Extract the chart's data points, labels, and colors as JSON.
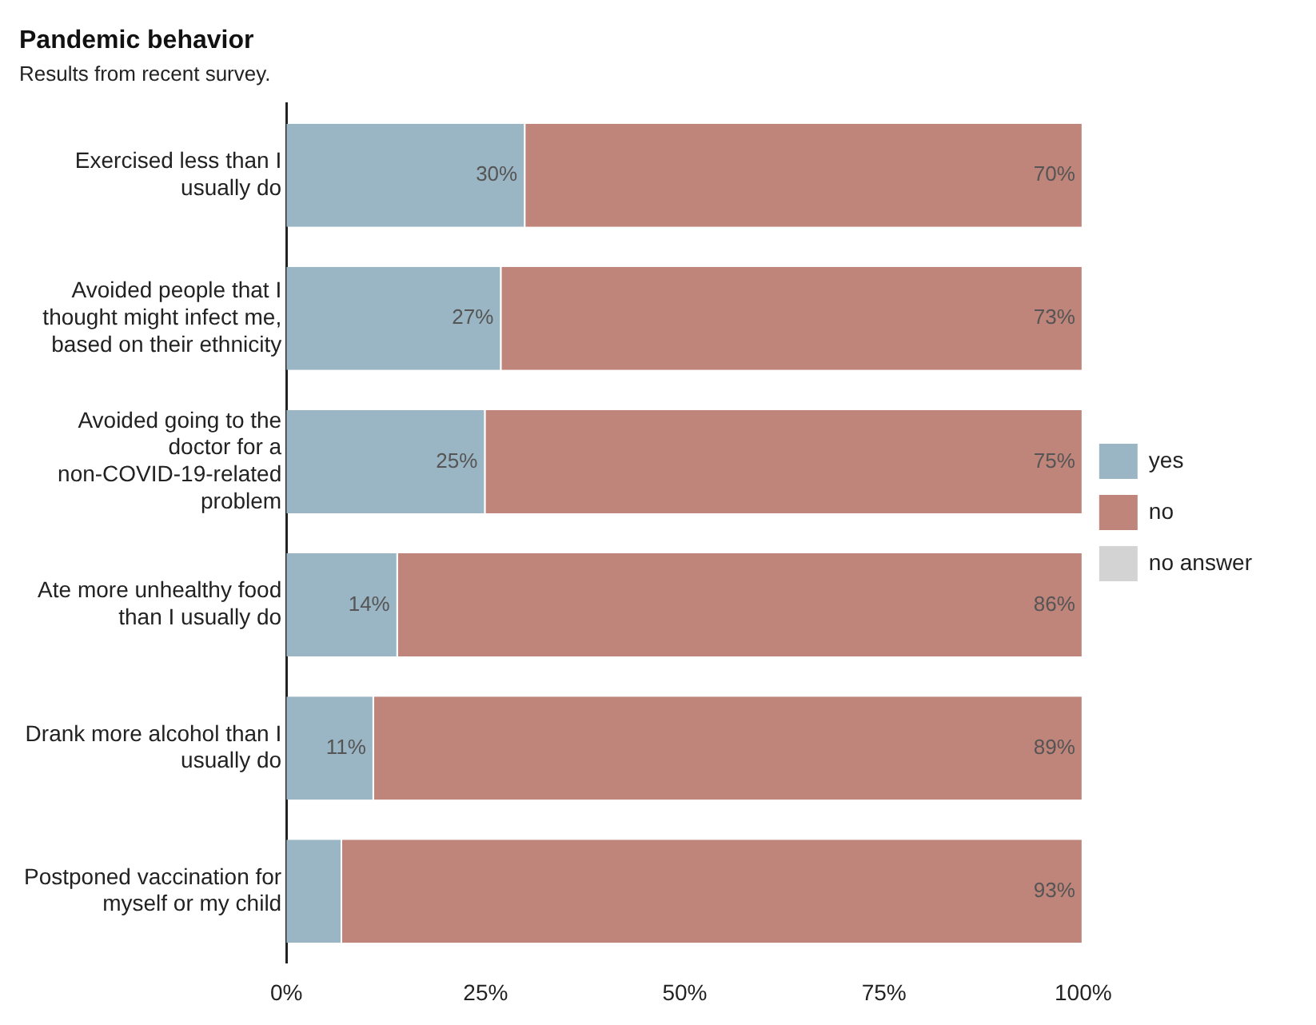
{
  "chart_data": {
    "type": "bar",
    "title": "Pandemic behavior",
    "subtitle": "Results from recent survey.",
    "orientation": "horizontal",
    "stacked": true,
    "categories": [
      "Exercised less than I usually do",
      "Avoided people that I thought might infect me, based on their ethnicity",
      "Avoided going to the doctor for a non-COVID-19-related problem",
      "Ate more unhealthy food than I usually do",
      "Drank more alcohol than I usually do",
      "Postponed vaccination for myself or my child"
    ],
    "series": [
      {
        "name": "yes",
        "color": "#9ab5c3",
        "values": [
          30,
          27,
          25,
          14,
          11,
          7
        ],
        "value_labels": [
          "30%",
          "27%",
          "25%",
          "14%",
          "11%",
          null
        ]
      },
      {
        "name": "no",
        "color": "#bf847a",
        "values": [
          70,
          73,
          75,
          86,
          89,
          93
        ],
        "value_labels": [
          "70%",
          "73%",
          "75%",
          "86%",
          "89%",
          "93%"
        ]
      },
      {
        "name": "no answer",
        "color": "#d3d3d3",
        "values": [
          0,
          0,
          0,
          0,
          0,
          0
        ]
      }
    ],
    "xlim": [
      0,
      100
    ],
    "xticks": [
      {
        "value": 0,
        "label": "0%"
      },
      {
        "value": 25,
        "label": "25%"
      },
      {
        "value": 50,
        "label": "50%"
      },
      {
        "value": 75,
        "label": "75%"
      },
      {
        "value": 100,
        "label": "100%"
      }
    ],
    "grid": false,
    "legend": "right"
  }
}
